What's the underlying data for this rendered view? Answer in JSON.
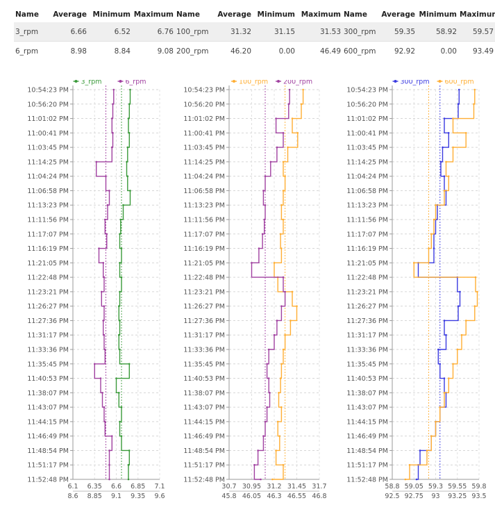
{
  "stats_table": {
    "headers": [
      "Name",
      "Average",
      "Minimum",
      "Maximum",
      "Name",
      "Average",
      "Minimum",
      "Maximum",
      "Name",
      "Average",
      "Minimum",
      "Maximum"
    ],
    "rows": [
      [
        "3_rpm",
        "6.66",
        "6.52",
        "6.76",
        "100_rpm",
        "31.32",
        "31.15",
        "31.53",
        "300_rpm",
        "59.35",
        "58.92",
        "59.57"
      ],
      [
        "6_rpm",
        "8.98",
        "8.84",
        "9.08",
        "200_rpm",
        "46.20",
        "0.00",
        "46.49",
        "600_rpm",
        "92.92",
        "0.00",
        "93.49"
      ]
    ]
  },
  "chart_data": [
    {
      "type": "line",
      "orientation": "vertical",
      "grid": true,
      "legend_placement": "top",
      "categories": [
        "10:54:23 PM",
        "10:56:20 PM",
        "11:01:02 PM",
        "11:00:41 PM",
        "11:03:45 PM",
        "11:14:25 PM",
        "11:04:24 PM",
        "11:06:58 PM",
        "11:13:23 PM",
        "11:11:56 PM",
        "11:17:07 PM",
        "11:16:19 PM",
        "11:21:05 PM",
        "11:22:48 PM",
        "11:23:21 PM",
        "11:26:27 PM",
        "11:27:36 PM",
        "11:31:17 PM",
        "11:33:36 PM",
        "11:35:45 PM",
        "11:40:53 PM",
        "11:38:07 PM",
        "11:43:07 PM",
        "11:44:15 PM",
        "11:46:49 PM",
        "11:48:54 PM",
        "11:51:17 PM",
        "11:52:48 PM"
      ],
      "axes": [
        {
          "ticks": [
            "6.1",
            "6.35",
            "6.6",
            "6.85",
            "7.1"
          ],
          "range": [
            6.1,
            7.1
          ]
        },
        {
          "ticks": [
            "8.6",
            "8.85",
            "9.1",
            "9.35",
            "9.6"
          ],
          "range": [
            8.6,
            9.6
          ]
        }
      ],
      "series": [
        {
          "name": "3_rpm",
          "color": "#3a9a3a",
          "axis": 0,
          "average": 6.66,
          "values": [
            6.76,
            6.75,
            6.74,
            6.75,
            6.73,
            6.72,
            6.73,
            6.76,
            6.68,
            6.65,
            6.64,
            6.66,
            6.64,
            6.66,
            6.64,
            6.63,
            6.64,
            6.63,
            6.64,
            6.75,
            6.6,
            6.63,
            6.66,
            6.64,
            6.66,
            6.75,
            6.74,
            6.74
          ]
        },
        {
          "name": "6_rpm",
          "color": "#a040a0",
          "axis": 1,
          "average": 8.98,
          "values": [
            9.07,
            9.06,
            9.05,
            9.06,
            9.05,
            8.87,
            8.98,
            9.02,
            9.0,
            8.97,
            8.99,
            8.9,
            8.95,
            8.96,
            8.93,
            8.96,
            8.95,
            8.96,
            8.97,
            8.85,
            8.92,
            8.94,
            8.96,
            8.97,
            9.05,
            9.02,
            9.02,
            9.02
          ]
        }
      ]
    },
    {
      "type": "line",
      "orientation": "vertical",
      "grid": true,
      "legend_placement": "top",
      "categories": [
        "10:54:23 PM",
        "10:56:20 PM",
        "11:01:02 PM",
        "11:00:41 PM",
        "11:03:45 PM",
        "11:14:25 PM",
        "11:04:24 PM",
        "11:06:58 PM",
        "11:13:23 PM",
        "11:11:56 PM",
        "11:17:07 PM",
        "11:16:19 PM",
        "11:21:05 PM",
        "11:22:48 PM",
        "11:23:21 PM",
        "11:26:27 PM",
        "11:27:36 PM",
        "11:31:17 PM",
        "11:33:36 PM",
        "11:35:45 PM",
        "11:40:53 PM",
        "11:38:07 PM",
        "11:43:07 PM",
        "11:44:15 PM",
        "11:46:49 PM",
        "11:48:54 PM",
        "11:51:17 PM",
        "11:52:48 PM"
      ],
      "axes": [
        {
          "ticks": [
            "30.7",
            "30.95",
            "31.2",
            "31.45",
            "31.7"
          ],
          "range": [
            30.7,
            31.7
          ]
        },
        {
          "ticks": [
            "45.8",
            "46.05",
            "46.3",
            "46.55",
            "46.8"
          ],
          "range": [
            45.8,
            46.8
          ]
        }
      ],
      "series": [
        {
          "name": "100_rpm",
          "color": "#ffae33",
          "axis": 0,
          "average": 31.32,
          "values": [
            31.52,
            31.5,
            31.4,
            31.46,
            31.35,
            31.3,
            31.32,
            31.3,
            31.28,
            31.3,
            31.27,
            31.28,
            31.2,
            31.24,
            31.4,
            31.45,
            31.38,
            31.32,
            31.3,
            31.28,
            31.27,
            31.25,
            31.28,
            31.24,
            31.26,
            31.22,
            31.3,
            31.18
          ]
        },
        {
          "name": "200_rpm",
          "color": "#a040a0",
          "axis": 1,
          "average": 46.2,
          "values": [
            46.47,
            46.46,
            46.32,
            46.4,
            46.33,
            46.26,
            46.2,
            46.18,
            46.2,
            46.19,
            46.17,
            46.13,
            46.05,
            46.4,
            46.42,
            46.38,
            46.33,
            46.3,
            46.24,
            46.22,
            46.24,
            46.25,
            46.22,
            46.2,
            46.18,
            46.12,
            46.08,
            46.15
          ]
        }
      ]
    },
    {
      "type": "line",
      "orientation": "vertical",
      "grid": true,
      "legend_placement": "top",
      "categories": [
        "10:54:23 PM",
        "10:56:20 PM",
        "11:01:02 PM",
        "11:00:41 PM",
        "11:03:45 PM",
        "11:14:25 PM",
        "11:04:24 PM",
        "11:06:58 PM",
        "11:13:23 PM",
        "11:11:56 PM",
        "11:17:07 PM",
        "11:16:19 PM",
        "11:21:05 PM",
        "11:22:48 PM",
        "11:23:21 PM",
        "11:26:27 PM",
        "11:27:36 PM",
        "11:31:17 PM",
        "11:33:36 PM",
        "11:35:45 PM",
        "11:40:53 PM",
        "11:38:07 PM",
        "11:43:07 PM",
        "11:44:15 PM",
        "11:46:49 PM",
        "11:48:54 PM",
        "11:51:17 PM",
        "11:52:48 PM"
      ],
      "axes": [
        {
          "ticks": [
            "58.8",
            "59.05",
            "59.3",
            "59.55",
            "59.8"
          ],
          "range": [
            58.8,
            59.8
          ]
        },
        {
          "ticks": [
            "92.5",
            "92.75",
            "93",
            "93.25",
            "93.5"
          ],
          "range": [
            92.5,
            93.5
          ]
        }
      ],
      "series": [
        {
          "name": "300_rpm",
          "color": "#3a3ae0",
          "axis": 0,
          "average": 59.35,
          "values": [
            59.57,
            59.56,
            59.4,
            59.45,
            59.38,
            59.36,
            59.4,
            59.42,
            59.32,
            59.3,
            59.28,
            59.28,
            59.1,
            59.55,
            59.58,
            59.56,
            59.4,
            59.42,
            59.33,
            59.35,
            59.4,
            59.42,
            59.35,
            59.3,
            59.25,
            59.12,
            59.1,
            59.08
          ]
        },
        {
          "name": "600_rpm",
          "color": "#ffae33",
          "axis": 1,
          "average": 92.92,
          "values": [
            93.45,
            93.44,
            93.2,
            93.35,
            93.2,
            93.12,
            93.15,
            93.1,
            93.0,
            92.98,
            92.95,
            92.92,
            92.75,
            93.46,
            93.48,
            93.45,
            93.35,
            93.3,
            93.25,
            93.2,
            93.15,
            93.1,
            93.05,
            93.0,
            92.95,
            92.9,
            92.7,
            92.65
          ]
        }
      ]
    }
  ]
}
